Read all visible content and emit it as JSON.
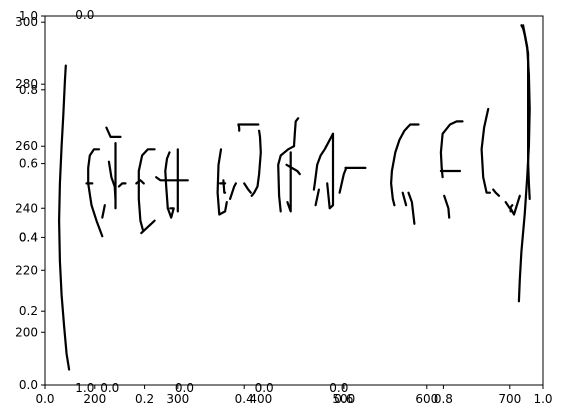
{
  "chart_data": {
    "type": "line",
    "title": "",
    "xlabel": "",
    "ylabel": "",
    "grid": false,
    "axes": [
      {
        "name": "unit-axes",
        "xlim": [
          0.0,
          1.0
        ],
        "ylim": [
          0.0,
          1.0
        ],
        "x_ticks": [
          "0.0",
          "0.2",
          "0.4",
          "0.6",
          "0.8",
          "1.0"
        ],
        "y_ticks": [
          "0.0",
          "0.2",
          "0.4",
          "0.6",
          "0.8",
          "1.0"
        ]
      },
      {
        "name": "stroke-axes",
        "xlim": [
          140,
          740
        ],
        "ylim": [
          183,
          302
        ],
        "x_ticks": [
          "200",
          "300",
          "400",
          "500",
          "600",
          "700"
        ],
        "y_ticks": [
          "200",
          "220",
          "240",
          "260",
          "280",
          "300"
        ]
      }
    ],
    "extra_tick_labels": [
      {
        "text": "0.0",
        "x": 0.08,
        "y": 1.0
      },
      {
        "text": "1.0",
        "x": 0.08,
        "y": 0.0
      },
      {
        "text": "0.0",
        "x": 0.13,
        "y": 0.0
      },
      {
        "text": "0.0",
        "x": 0.28,
        "y": 0.0
      },
      {
        "text": "0.0",
        "x": 0.44,
        "y": 0.0
      },
      {
        "text": "0.0",
        "x": 0.59,
        "y": 0.0
      },
      {
        "text": "0.4",
        "x": 0.0,
        "y": 0.4
      }
    ],
    "series": [
      {
        "values": [
          [
            165,
            286
          ],
          [
            164,
            281
          ],
          [
            162,
            270
          ],
          [
            160,
            260
          ],
          [
            158,
            248
          ],
          [
            157,
            236
          ],
          [
            158,
            223
          ],
          [
            160,
            212
          ],
          [
            163,
            202
          ],
          [
            166,
            193
          ],
          [
            169,
            188
          ]
        ]
      },
      {
        "values": [
          [
            192,
            248
          ],
          [
            192,
            253
          ],
          [
            194,
            257
          ],
          [
            199,
            259
          ],
          [
            205,
            259
          ]
        ]
      },
      {
        "values": [
          [
            192,
            248
          ],
          [
            196,
            241
          ],
          [
            202,
            236
          ],
          [
            209,
            231
          ]
        ]
      },
      {
        "values": [
          [
            190,
            248
          ],
          [
            197,
            248
          ]
        ]
      },
      {
        "values": [
          [
            209,
            237
          ],
          [
            212,
            241
          ]
        ]
      },
      {
        "values": [
          [
            214,
            266
          ],
          [
            219,
            263
          ],
          [
            231,
            263
          ]
        ]
      },
      {
        "values": [
          [
            225,
            261
          ],
          [
            225,
            240
          ]
        ]
      },
      {
        "values": [
          [
            217,
            255
          ],
          [
            220,
            250
          ],
          [
            224,
            247
          ],
          [
            225,
            243
          ]
        ]
      },
      {
        "values": [
          [
            229,
            247
          ],
          [
            233,
            248
          ],
          [
            237,
            248
          ]
        ]
      },
      {
        "values": [
          [
            258,
            233
          ],
          [
            255,
            236
          ],
          [
            253,
            243
          ],
          [
            253,
            252
          ],
          [
            257,
            257
          ],
          [
            264,
            259
          ],
          [
            272,
            259
          ]
        ]
      },
      {
        "values": [
          [
            256,
            232
          ],
          [
            272,
            236
          ]
        ]
      },
      {
        "values": [
          [
            250,
            248
          ],
          [
            255,
            249
          ],
          [
            259,
            248
          ]
        ]
      },
      {
        "values": [
          [
            290,
            258
          ],
          [
            287,
            256
          ],
          [
            285,
            252
          ],
          [
            286,
            247
          ],
          [
            288,
            240
          ]
        ]
      },
      {
        "values": [
          [
            291,
            240
          ],
          [
            295,
            240
          ],
          [
            292,
            237
          ],
          [
            288,
            240
          ]
        ]
      },
      {
        "values": [
          [
            274,
            250
          ],
          [
            279,
            249
          ],
          [
            286,
            249
          ],
          [
            304,
            249
          ],
          [
            312,
            249
          ]
        ]
      },
      {
        "values": [
          [
            300,
            259
          ],
          [
            300,
            239
          ]
        ]
      },
      {
        "values": [
          [
            351,
            248
          ],
          [
            357,
            248
          ]
        ]
      },
      {
        "values": [
          [
            355,
            249
          ],
          [
            356,
            245
          ],
          [
            357,
            245
          ]
        ]
      },
      {
        "values": [
          [
            352,
            259
          ],
          [
            349,
            254
          ],
          [
            348,
            245
          ],
          [
            350,
            238
          ],
          [
            357,
            239
          ],
          [
            359,
            242
          ]
        ]
      },
      {
        "values": [
          [
            363,
            243
          ],
          [
            368,
            247
          ],
          [
            370,
            248
          ]
        ]
      },
      {
        "values": [
          [
            374,
            265
          ],
          [
            374,
            266
          ],
          [
            373,
            267
          ],
          [
            386,
            267
          ],
          [
            397,
            267
          ]
        ]
      },
      {
        "values": [
          [
            398,
            265
          ],
          [
            399,
            263
          ],
          [
            400,
            258
          ],
          [
            398,
            251
          ],
          [
            396,
            247
          ],
          [
            392,
            245
          ],
          [
            389,
            244
          ]
        ]
      },
      {
        "values": [
          [
            388,
            245
          ],
          [
            385,
            246
          ],
          [
            380,
            248
          ]
        ]
      },
      {
        "values": [
          [
            424,
            239
          ],
          [
            422,
            244
          ],
          [
            421,
            254
          ],
          [
            424,
            257
          ],
          [
            433,
            259
          ],
          [
            440,
            260
          ]
        ]
      },
      {
        "values": [
          [
            440,
            260
          ],
          [
            441,
            264
          ],
          [
            442,
            268
          ],
          [
            445,
            269
          ]
        ]
      },
      {
        "values": [
          [
            436,
            258
          ],
          [
            436,
            239
          ],
          [
            432,
            242
          ]
        ]
      },
      {
        "values": [
          [
            431,
            254
          ],
          [
            444,
            252
          ],
          [
            447,
            251
          ]
        ]
      },
      {
        "values": [
          [
            464,
            246
          ],
          [
            465,
            248
          ],
          [
            468,
            254
          ],
          [
            472,
            257
          ],
          [
            477,
            259
          ],
          [
            487,
            264
          ]
        ]
      },
      {
        "values": [
          [
            470,
            246
          ],
          [
            466,
            241
          ]
        ]
      },
      {
        "values": [
          [
            487,
            264
          ],
          [
            487,
            241
          ],
          [
            483,
            240
          ],
          [
            480,
            248
          ]
        ]
      },
      {
        "values": [
          [
            495,
            245
          ],
          [
            500,
            251
          ],
          [
            503,
            253
          ]
        ]
      },
      {
        "values": [
          [
            502,
            253
          ],
          [
            510,
            253
          ],
          [
            526,
            253
          ]
        ]
      },
      {
        "values": [
          [
            561,
            241
          ],
          [
            559,
            243
          ],
          [
            557,
            248
          ],
          [
            558,
            252
          ],
          [
            562,
            258
          ],
          [
            567,
            262
          ],
          [
            573,
            265
          ],
          [
            580,
            267
          ],
          [
            590,
            267
          ]
        ]
      },
      {
        "values": [
          [
            571,
            245
          ],
          [
            575,
            241
          ]
        ]
      },
      {
        "values": [
          [
            578,
            245
          ],
          [
            582,
            242
          ],
          [
            585,
            235
          ]
        ]
      },
      {
        "values": [
          [
            619,
            250
          ],
          [
            618,
            253
          ],
          [
            617,
            258
          ],
          [
            619,
            264
          ],
          [
            628,
            267
          ],
          [
            636,
            268
          ],
          [
            643,
            268
          ]
        ]
      },
      {
        "values": [
          [
            621,
            244
          ],
          [
            626,
            240
          ],
          [
            627,
            237
          ]
        ]
      },
      {
        "values": [
          [
            617,
            252
          ],
          [
            635,
            252
          ],
          [
            640,
            252
          ]
        ]
      },
      {
        "values": [
          [
            674,
            272
          ],
          [
            669,
            266
          ],
          [
            666,
            259
          ],
          [
            668,
            250
          ],
          [
            672,
            245
          ],
          [
            676,
            245
          ]
        ]
      },
      {
        "values": [
          [
            680,
            246
          ],
          [
            683,
            245
          ],
          [
            687,
            244
          ]
        ]
      },
      {
        "values": [
          [
            695,
            242
          ],
          [
            700,
            240
          ],
          [
            703,
            241
          ]
        ]
      },
      {
        "values": [
          [
            701,
            239
          ],
          [
            701,
            240
          ],
          [
            705,
            238
          ],
          [
            712,
            244
          ]
        ]
      },
      {
        "values": [
          [
            724,
            243
          ],
          [
            723,
            248
          ],
          [
            722,
            255
          ],
          [
            722,
            268
          ],
          [
            722,
            290
          ],
          [
            718,
            296
          ],
          [
            716,
            298
          ]
        ]
      },
      {
        "values": [
          [
            716,
            298
          ],
          [
            714,
            299
          ]
        ]
      },
      {
        "values": [
          [
            716,
            299
          ],
          [
            721,
            292
          ],
          [
            723,
            283
          ],
          [
            724,
            272
          ],
          [
            723,
            260
          ],
          [
            721,
            250
          ],
          [
            718,
            238
          ],
          [
            714,
            226
          ],
          [
            712,
            217
          ],
          [
            711,
            210
          ]
        ]
      }
    ]
  }
}
